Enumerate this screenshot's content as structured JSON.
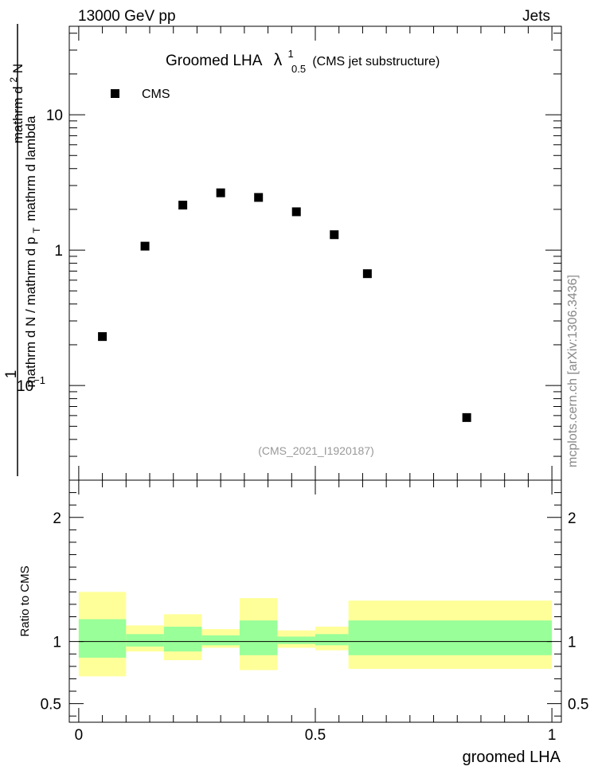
{
  "header": {
    "left": "13000 GeV pp",
    "right": "Jets"
  },
  "side_label": "mcplots.cern.ch [arXiv:1306.3436]",
  "chart_data": [
    {
      "type": "scatter",
      "panel": "main",
      "title": "Groomed LHA",
      "title_symbol": {
        "base": "λ",
        "sup": "1",
        "sub": "0.5"
      },
      "subtitle": "(CMS jet substructure)",
      "watermark": "(CMS_2021_I1920187)",
      "ylabel": {
        "line1": "1",
        "line2": "mathrm d N / mathrm d p",
        "line2_sub": "T",
        "line2_tail": "mathrm d lambda",
        "line3": "mathrm d",
        "line3_sup": "2",
        "line3_tail": "N"
      },
      "yscale": "log",
      "ylim": [
        0.02,
        45
      ],
      "xlim": [
        -0.02,
        1.02
      ],
      "yticks": [
        {
          "value": 0.1,
          "label": "10",
          "sup": "−1"
        },
        {
          "value": 1,
          "label": "1",
          "sup": ""
        },
        {
          "value": 10,
          "label": "10",
          "sup": ""
        }
      ],
      "legend": {
        "entries": [
          {
            "name": "CMS",
            "marker": "square"
          }
        ],
        "placement": "top-left"
      },
      "series": [
        {
          "name": "CMS",
          "x": [
            0.05,
            0.14,
            0.22,
            0.3,
            0.38,
            0.46,
            0.54,
            0.61,
            0.82
          ],
          "y": [
            0.23,
            1.07,
            2.15,
            2.65,
            2.45,
            1.92,
            1.3,
            0.67,
            0.058
          ],
          "color": "#000000"
        }
      ]
    },
    {
      "type": "area",
      "panel": "ratio",
      "ylabel": "Ratio to CMS",
      "xlabel": "groomed LHA",
      "xlim": [
        -0.02,
        1.02
      ],
      "ylim": [
        0.35,
        2.3
      ],
      "yticks": [
        {
          "value": 0.5,
          "label": "0.5"
        },
        {
          "value": 1,
          "label": "1"
        },
        {
          "value": 2,
          "label": "2"
        }
      ],
      "xticks": [
        {
          "value": 0,
          "label": "0"
        },
        {
          "value": 0.5,
          "label": "0.5"
        },
        {
          "value": 1,
          "label": "1"
        }
      ],
      "reference_line": 1,
      "bins": [
        {
          "lo": 0.0,
          "hi": 0.1,
          "stat": [
            0.87,
            1.18
          ],
          "total": [
            0.72,
            1.4
          ]
        },
        {
          "lo": 0.1,
          "hi": 0.18,
          "stat": [
            0.96,
            1.06
          ],
          "total": [
            0.92,
            1.13
          ]
        },
        {
          "lo": 0.18,
          "hi": 0.26,
          "stat": [
            0.92,
            1.12
          ],
          "total": [
            0.85,
            1.22
          ]
        },
        {
          "lo": 0.26,
          "hi": 0.34,
          "stat": [
            0.97,
            1.05
          ],
          "total": [
            0.95,
            1.1
          ]
        },
        {
          "lo": 0.34,
          "hi": 0.42,
          "stat": [
            0.89,
            1.17
          ],
          "total": [
            0.77,
            1.35
          ]
        },
        {
          "lo": 0.42,
          "hi": 0.5,
          "stat": [
            0.98,
            1.04
          ],
          "total": [
            0.95,
            1.09
          ]
        },
        {
          "lo": 0.5,
          "hi": 0.57,
          "stat": [
            0.97,
            1.06
          ],
          "total": [
            0.93,
            1.12
          ]
        },
        {
          "lo": 0.57,
          "hi": 1.0,
          "stat": [
            0.89,
            1.17
          ],
          "total": [
            0.78,
            1.33
          ]
        }
      ],
      "colors": {
        "stat": "#99ff99",
        "total": "#ffff99",
        "line": "#000000"
      }
    }
  ]
}
